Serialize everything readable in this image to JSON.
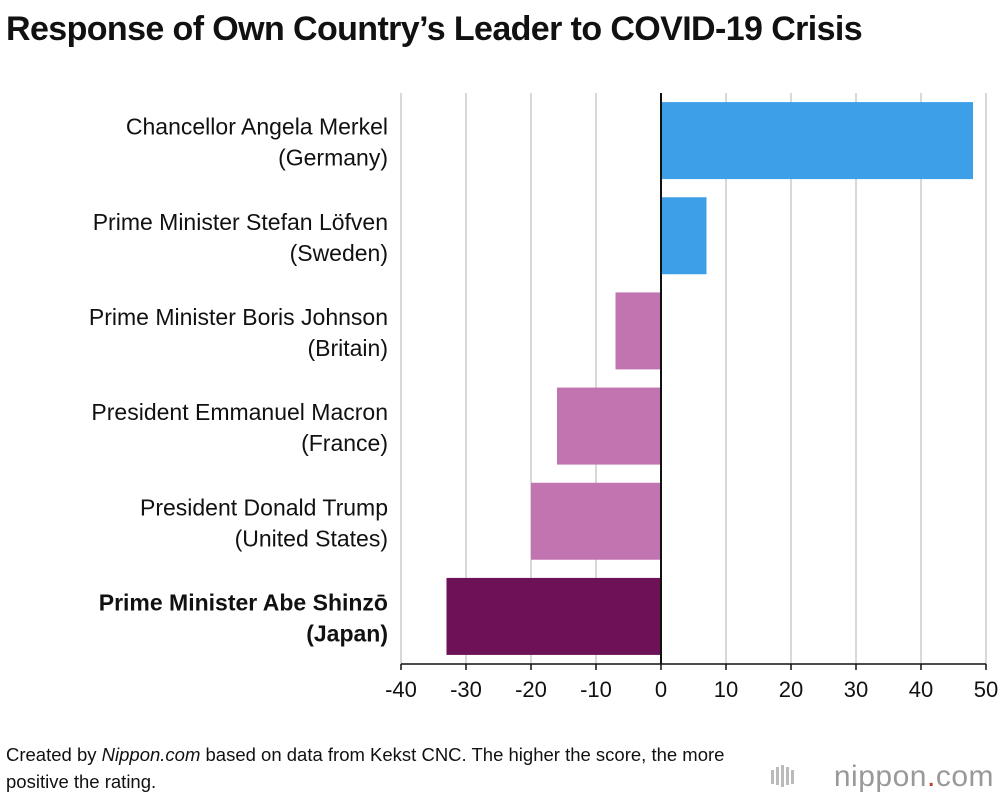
{
  "title": "Response of Own Country’s Leader to COVID-19 Crisis",
  "chart_data": {
    "type": "bar",
    "orientation": "horizontal",
    "title": "Response of Own Country’s Leader to COVID-19 Crisis",
    "categories": [
      {
        "line1": "Chancellor Angela Merkel",
        "line2": "(Germany)",
        "value": 48,
        "color": "#3d9fe8",
        "bold": false
      },
      {
        "line1": "Prime Minister Stefan Löfven",
        "line2": "(Sweden)",
        "value": 7,
        "color": "#3d9fe8",
        "bold": false
      },
      {
        "line1": "Prime Minister Boris Johnson",
        "line2": "(Britain)",
        "value": -7,
        "color": "#c174b0",
        "bold": false
      },
      {
        "line1": "President Emmanuel Macron",
        "line2": "(France)",
        "value": -16,
        "color": "#c174b0",
        "bold": false
      },
      {
        "line1": "President Donald Trump",
        "line2": "(United States)",
        "value": -20,
        "color": "#c174b0",
        "bold": false
      },
      {
        "line1": "Prime Minister Abe Shinzō",
        "line2": "(Japan)",
        "value": -33,
        "color": "#6e1257",
        "bold": true
      }
    ],
    "xlim": [
      -40,
      50
    ],
    "ticks": [
      -40,
      -30,
      -20,
      -10,
      0,
      10,
      20,
      30,
      40,
      50
    ],
    "grid": true,
    "xlabel": "",
    "ylabel": ""
  },
  "footer": {
    "prefix": "Created by ",
    "source": "Nippon.com",
    "suffix": " based on data from Kekst CNC. The higher the score, the more positive the rating."
  },
  "logo": {
    "main": "nippon",
    "dot": ".",
    "tld": "com"
  }
}
